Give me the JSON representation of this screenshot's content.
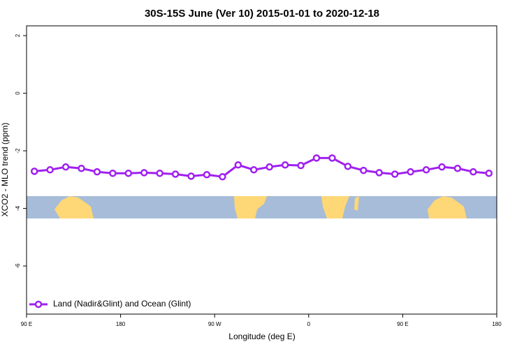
{
  "chart_data": {
    "type": "line",
    "title": "30S-15S June (Ver 10)   2015-01-01 to 2020-12-18",
    "x_label": "Longitude (deg E)",
    "y_label": "XCO2 - MLO trend (ppm)",
    "x": [
      97.5,
      112.5,
      127.5,
      142.5,
      157.5,
      172.5,
      187.5,
      202.5,
      217.5,
      232.5,
      247.5,
      262.5,
      277.5,
      292.5,
      307.5,
      322.5,
      337.5,
      352.5,
      367.5,
      382.5,
      397.5,
      412.5,
      427.5,
      442.5,
      457.5,
      472.5,
      487.5,
      502.5,
      517.5,
      532.5
    ],
    "series": [
      {
        "name": "Land (Nadir&Glint) and Ocean (Glint)",
        "color": "#a020f0",
        "values": [
          -2.71,
          -2.66,
          -2.56,
          -2.61,
          -2.73,
          -2.78,
          -2.78,
          -2.76,
          -2.78,
          -2.81,
          -2.88,
          -2.83,
          -2.9,
          -2.49,
          -2.66,
          -2.56,
          -2.49,
          -2.51,
          -2.25,
          -2.25,
          -2.54,
          -2.68,
          -2.76,
          -2.81,
          -2.73,
          -2.66,
          -2.56,
          -2.61,
          -2.73,
          -2.78
        ]
      }
    ],
    "xlim": [
      90,
      540
    ],
    "xticks": [
      {
        "value": 90,
        "label": "90 E"
      },
      180,
      {
        "value": 270,
        "label": "90 W"
      },
      {
        "value": 360,
        "label": "0"
      },
      {
        "value": 450,
        "label": "90 E"
      },
      {
        "value": 540,
        "label": "180"
      }
    ],
    "ylim": [
      -7.67,
      2.34
    ],
    "yticks": [
      2,
      0,
      -2,
      -4,
      -6
    ],
    "legend": "bottom-left"
  }
}
